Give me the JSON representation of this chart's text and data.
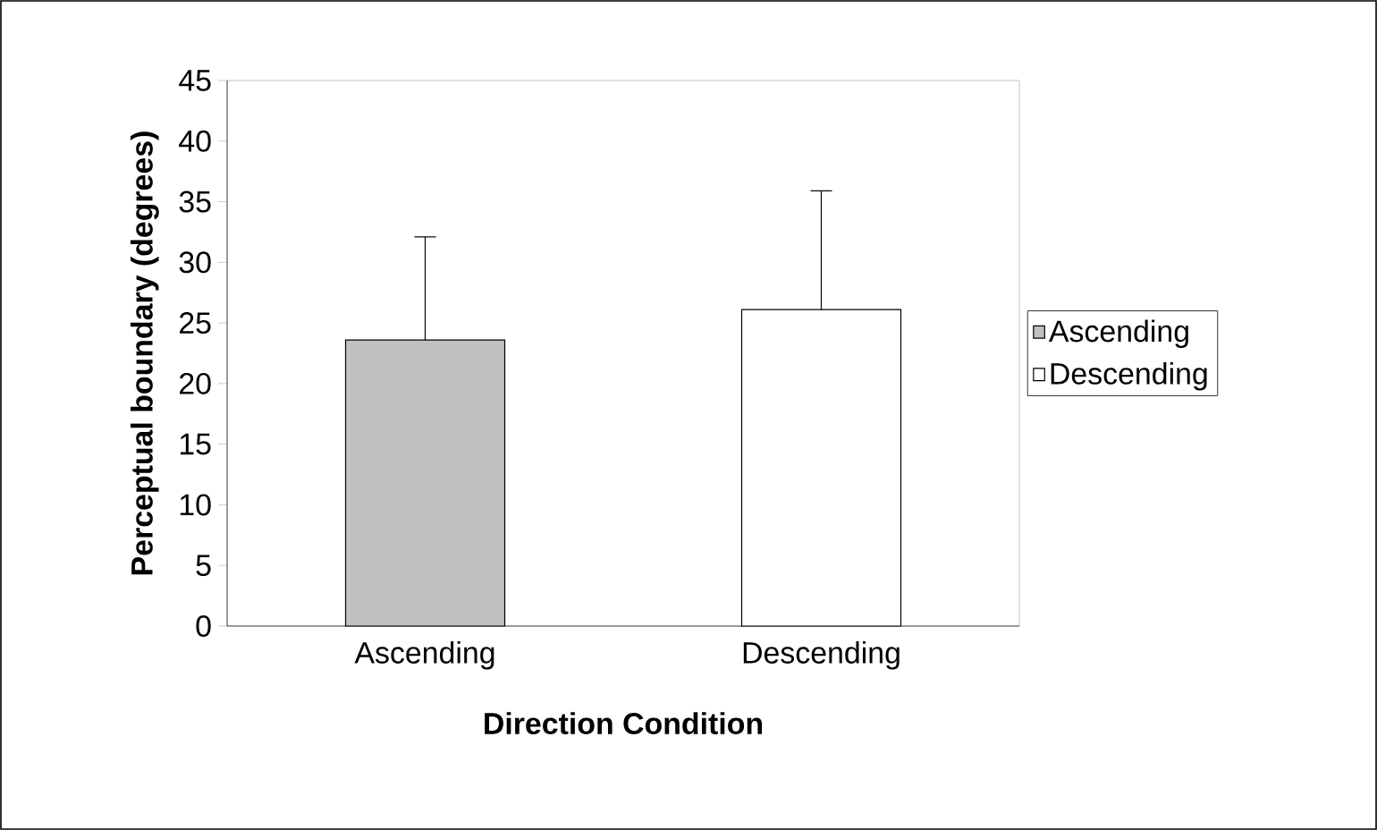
{
  "chart_data": {
    "type": "bar",
    "xlabel": "Direction Condition",
    "ylabel": "Perceptual boundary (degrees)",
    "categories": [
      "Ascending",
      "Descending"
    ],
    "series": [
      {
        "name": "Ascending",
        "color": "#c0c0c0",
        "values": [
          23.6,
          null
        ],
        "errors": [
          [
            23.6,
            32.1
          ],
          null
        ]
      },
      {
        "name": "Descending",
        "color": "#ffffff",
        "values": [
          null,
          26.1
        ],
        "errors": [
          null,
          [
            26.1,
            35.9
          ]
        ]
      }
    ],
    "ylim": [
      0,
      45
    ],
    "yticks": [
      0,
      5,
      10,
      15,
      20,
      25,
      30,
      35,
      40,
      45
    ],
    "grid": false,
    "legend": "right"
  }
}
